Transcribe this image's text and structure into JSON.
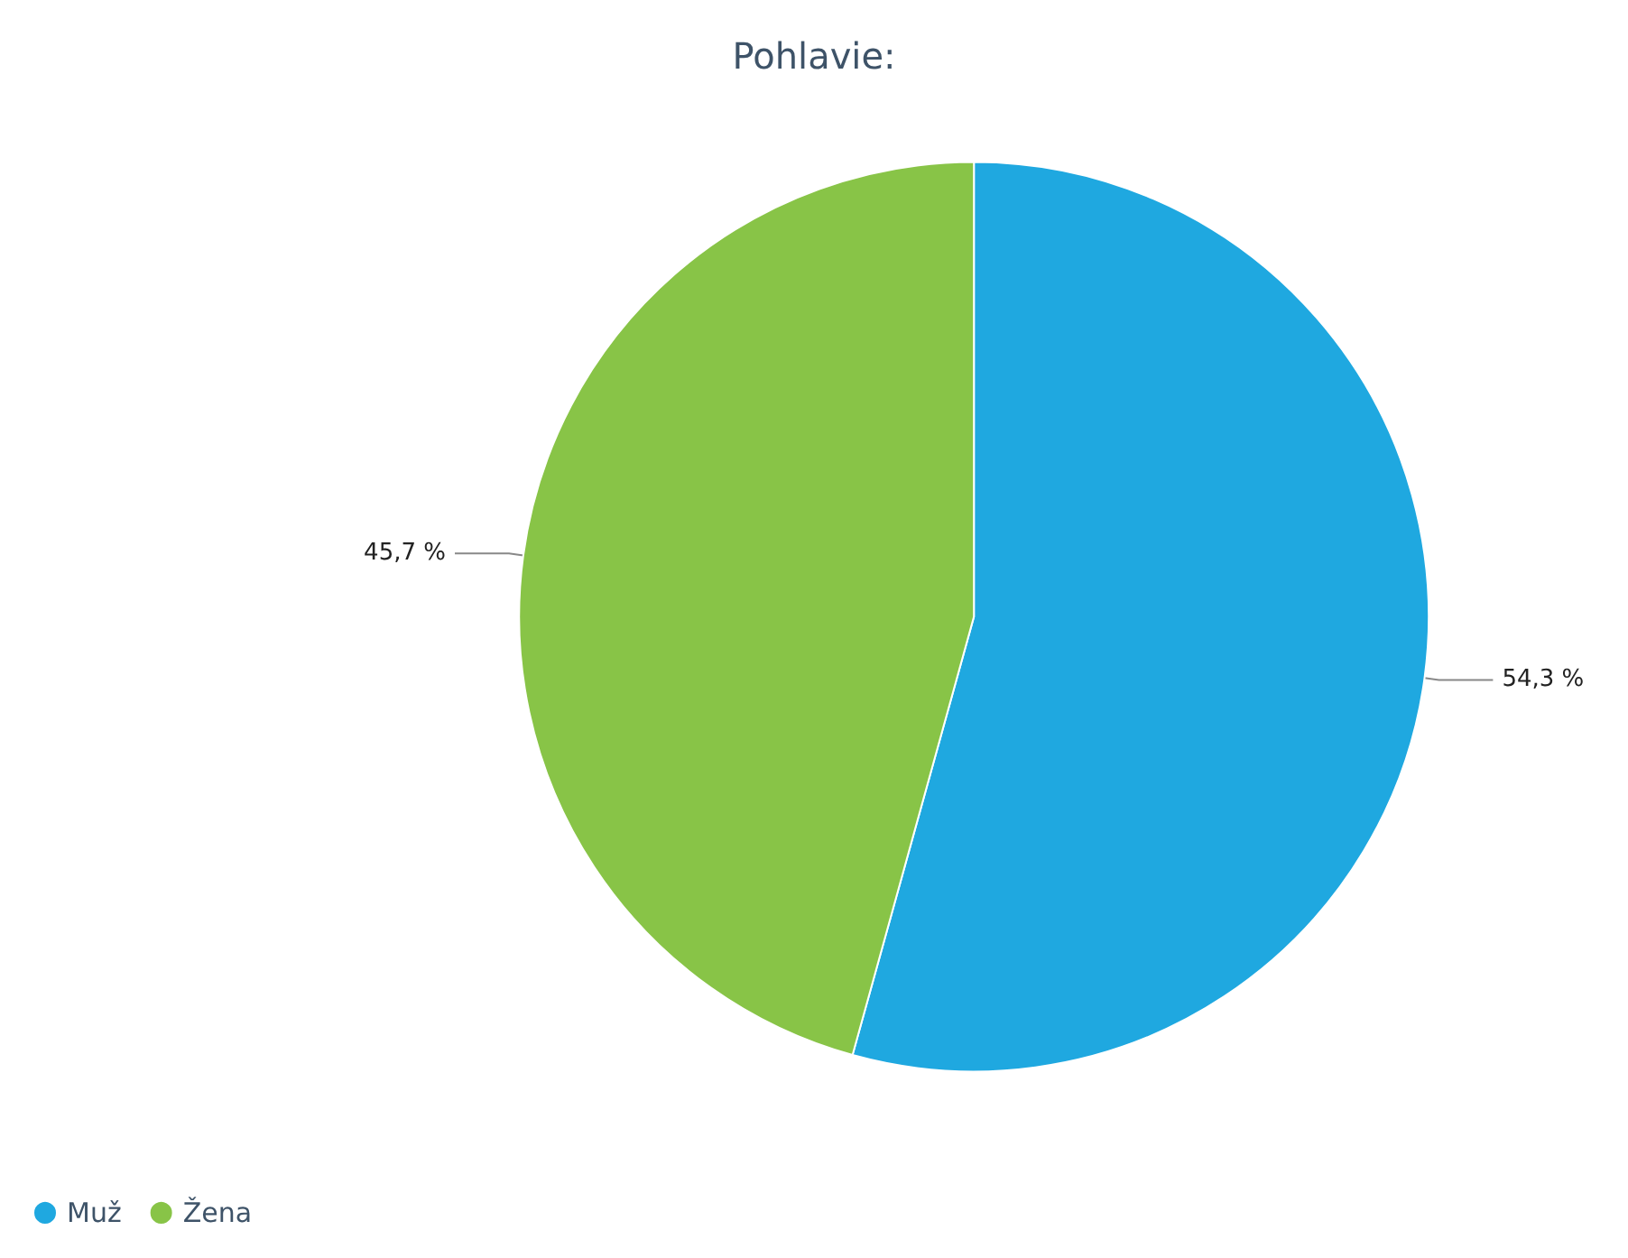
{
  "chart_data": {
    "type": "pie",
    "title": "Pohlavie:",
    "categories": [
      "Muž",
      "Žena"
    ],
    "values": [
      54.3,
      45.7
    ],
    "colors": [
      "#1fa8e0",
      "#88c447"
    ],
    "value_labels": [
      "54,3 %",
      "45,7 %"
    ],
    "legend": "bottom left"
  }
}
